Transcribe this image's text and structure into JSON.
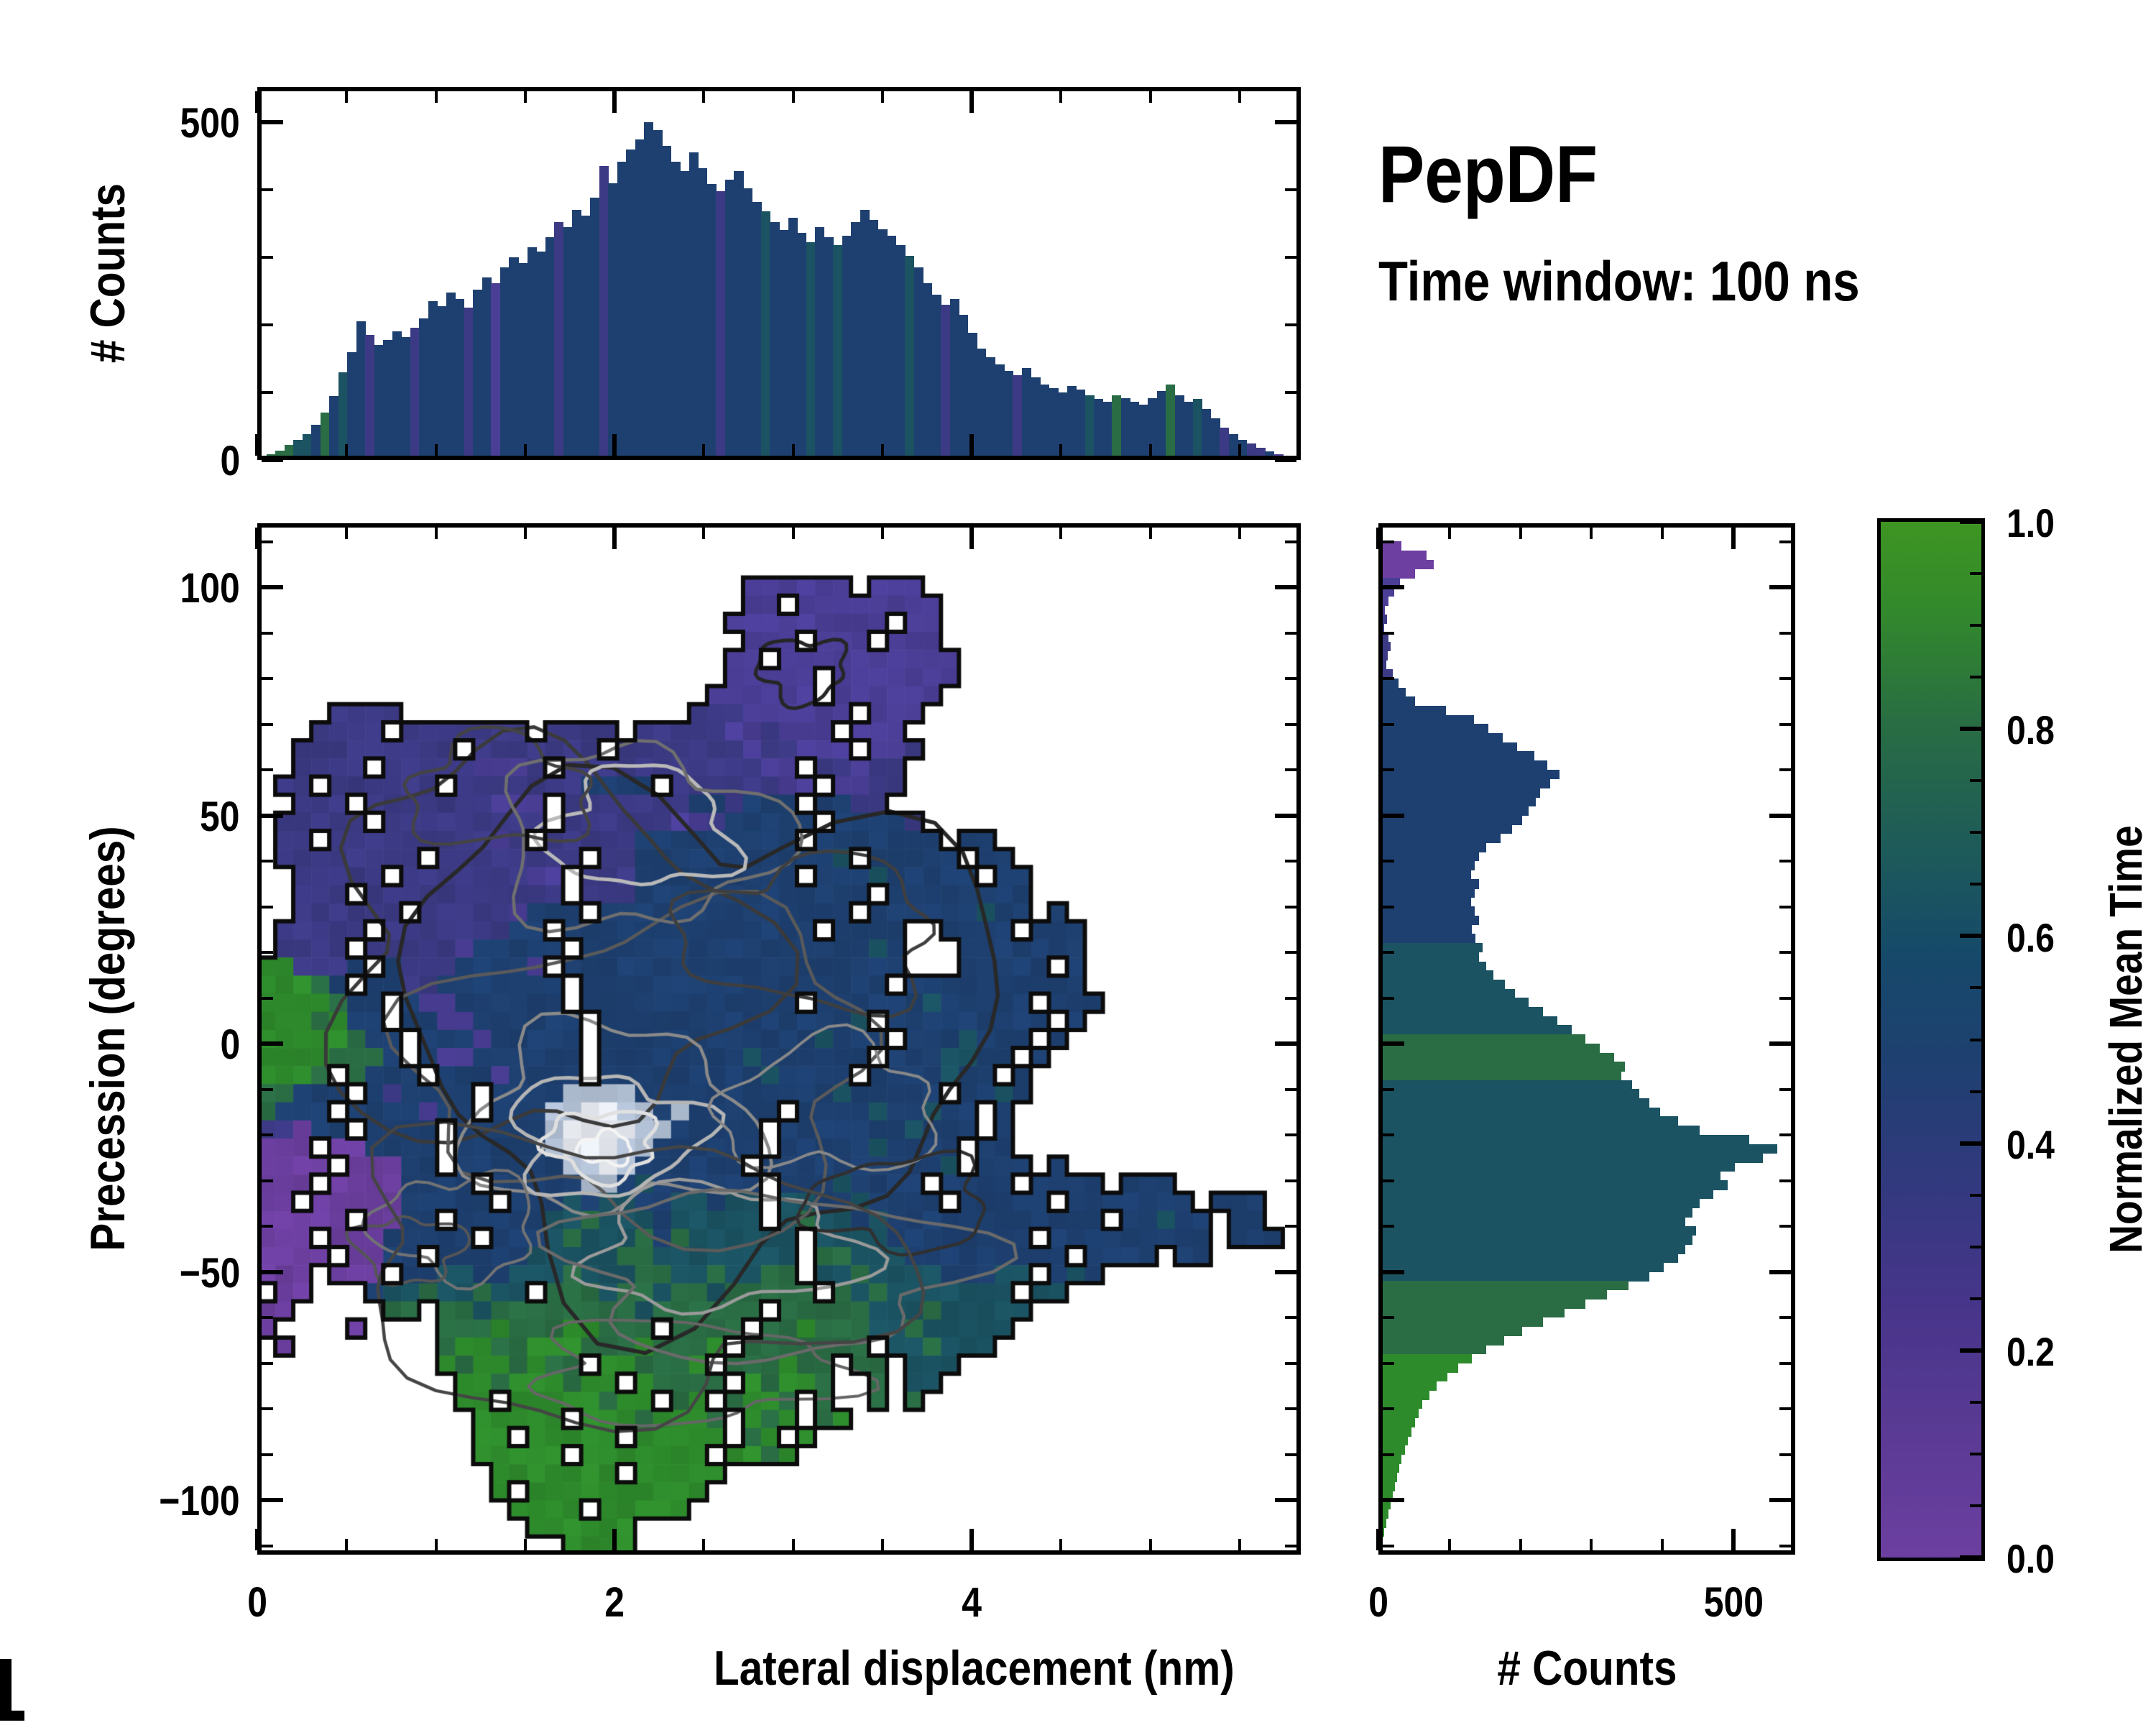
{
  "title": "PepDF",
  "subtitle": "Time window: 100 ns",
  "colorbar": {
    "label": "Normalized Mean Time",
    "tick_labels": [
      "0.0",
      "0.2",
      "0.4",
      "0.6",
      "0.8",
      "1.0"
    ],
    "tick_values": [
      0,
      0.2,
      0.4,
      0.6,
      0.8,
      1.0
    ],
    "minor_step": 0.05,
    "range": [
      0,
      1
    ]
  },
  "palette": {
    "p": "#6C3FA0",
    "v": "#4A3E96",
    "i": "#3C3A84",
    "b": "#1E4070",
    "t": "#1B5362",
    "g": "#2A6C44",
    "G": "#2E8B2C",
    "L": "#AFBDD1",
    "W": "#E9EDF3"
  },
  "colormap_stops": [
    [
      0,
      "#6C3FA0"
    ],
    [
      0.12,
      "#5A3A94"
    ],
    [
      0.25,
      "#46358A"
    ],
    [
      0.38,
      "#2F3A7C"
    ],
    [
      0.48,
      "#1E4070"
    ],
    [
      0.58,
      "#16496A"
    ],
    [
      0.68,
      "#1D5A5A"
    ],
    [
      0.8,
      "#286C44"
    ],
    [
      0.92,
      "#338A2B"
    ],
    [
      1,
      "#3E9522"
    ]
  ],
  "chart_data": [
    {
      "id": "top_histogram",
      "type": "bar",
      "orientation": "vertical",
      "ylabel": "# Counts",
      "ytick_labels": [
        "0",
        "500"
      ],
      "ytick_values": [
        0,
        500
      ],
      "y_minor_step": 100,
      "ylim": [
        0,
        552
      ],
      "x_bin_nm": 0.05,
      "xlim_nm": [
        0,
        5.8
      ],
      "values": [
        3,
        8,
        14,
        22,
        30,
        38,
        52,
        70,
        95,
        130,
        160,
        205,
        185,
        170,
        178,
        190,
        182,
        196,
        210,
        235,
        228,
        248,
        238,
        226,
        252,
        270,
        262,
        285,
        300,
        292,
        315,
        308,
        330,
        352,
        345,
        370,
        362,
        388,
        435,
        410,
        442,
        460,
        475,
        500,
        488,
        465,
        442,
        428,
        455,
        432,
        408,
        398,
        415,
        428,
        402,
        382,
        368,
        352,
        340,
        358,
        336,
        322,
        345,
        330,
        318,
        332,
        352,
        370,
        355,
        342,
        332,
        318,
        302,
        285,
        262,
        245,
        230,
        238,
        215,
        188,
        165,
        152,
        142,
        132,
        126,
        136,
        122,
        112,
        106,
        100,
        110,
        104,
        96,
        90,
        86,
        96,
        92,
        86,
        82,
        92,
        102,
        112,
        96,
        86,
        90,
        76,
        62,
        48,
        38,
        30,
        24,
        18,
        13,
        9,
        6,
        4
      ],
      "tints": "ggggttbgbtbbibbbbibbbbbibbvbbbbbbibbbbibbbbbbbbbbbbibbbbtbbbbtbbtbbbbbbbtbbbibbbbbbbibbbbbbbtbbgbbbbbgbbtbbibbiibvii"
    },
    {
      "id": "main_heatmap",
      "type": "heatmap",
      "xlabel": "Lateral displacement (nm)",
      "ylabel": "Precession (degrees)",
      "xtick_labels": [
        "0",
        "2",
        "4"
      ],
      "xtick_values": [
        0,
        2,
        4
      ],
      "x_minor_step": 0.5,
      "ytick_labels": [
        "100",
        "50",
        "0",
        "−50",
        "−100"
      ],
      "ytick_values": [
        100,
        50,
        0,
        -50,
        -100
      ],
      "y_minor_step": 10,
      "xlim_nm": [
        0,
        5.84
      ],
      "ylim_deg": [
        -112.5,
        114.3
      ],
      "grid_cols": 58,
      "grid_rows": 57,
      "cell_deg": 4,
      "cell_nm": 0.1,
      "cell_legend": {
        ".": "empty",
        "p": "purple t~0.05",
        "v": "violet t~0.18",
        "i": "indigo t~0.3",
        "b": "navy t~0.46",
        "t": "teal t~0.64",
        "g": "green-teal t~0.78",
        "G": "green t~0.93",
        "L": "light high-density",
        "W": "white high-density core"
      },
      "grid": [
        "",
        "",
        "",
        "...........................vvvvvv.vvv",
        "...........................vv.vvvvvvvv",
        "..........................vvvvvvvvv.vv",
        "...........................vvv.vvv.vvv",
        "..........................vv.vvvvvvvvvv",
        "..........................vvvvv.vvvvvvv",
        ".........................vvvvvv.vvvvvv",
        "....iiii................iiivvvvvv.vvv",
        "...iiii.iiiiiii.iiii.iiiiivvivvv.vvv",
        "..iiiiiiiii.iiiiiii.iiiiiiiviivvv.vvi",
        "..iiii.iiiiivvvi.iiiiiiiiiiivv.iivii",
        ".ii.iiiiii.iiiiiiibbbb.iiiiiivv.vvii",
        "..iii.iiiiiiivvv.iiiiiiibbibbb.bbii.",
        ".iiiii.iiiiiiiii.iiiiiivvibbbbb.bbbbi",
        ".ii.iiiiiiiiivi.iiiiibbbbbbbbb.bbbbbbb.bb",
        ".iiiiiiii.iiiiiiii.iibbbbbbbbbbbt.bbbbb.bb",
        "..iiiii.iiiiiiivv.iiibbbbbbbbb.bbbtbbbbb.bb",
        "..iii.iiiiiiiiiii.iiibbbbbbbbbbbbb.bbbbbbbb",
        "..iiiiii.iiiiivbbb.bbbbbbbbbbbbbb.bbbbbbtbb.b",
        ".iiiii.iiiiiiibb.bbbbbbbbbbbbbb.bbbb..bbbb.bbb",
        ".iiii.iiiiivbbbbb.bbbbbbbbbbbbbbbbtb...bbbbbbb",
        "GGiiib.biiibbbbv.bbbbbbbbbbbbbbbbbbb...bbbbb.b",
        "GGGgb.bbiibbbbbbb.bbbbbbbbbbbbbbbbb.bbbbbbbbbb",
        "GGGGgbb.bvvbbbbbb.bbbbbbbbbbbb.bbbbbbtbbbbb.bbb",
        "GGGgGbb.bbvvbbbbbb.bbbbbbbbbbbbbbt.bbbbbbbbb.b",
        "GGGGGgbb.bbbvbbbbb.bbbbbbbbbbbbtbbb.bbbtbbb.b",
        "GGGGgggb.bvvbbbbbb.bbbbbbbbtbbbbbb.bbbttbb.b",
        "GGGg.gbbb.bbbvbbbb.bbbbbbbbbtbbbb.bbbbtbb.b",
        "ggbbb.bibbbb.bbbbLLLLbbbbbbbbbbbtbbbbb.bbtb",
        "gbbb.bbbbvbb.bbbLLWWLLbLbbbbb.bbbbtbbtbb.b",
        "iipbb.bbbb.bbbbbLWWWWLLbbbbb.bbbbbbbtbbb.b",
        "ppp.ppbbbb.bbbbbLWWWLLbbbbbb.bbbbbtbbbb.bb",
        "pppp.pppbb.bbbbbbLLWLbbbbbb.bbbbbbbbbbt.bbb.b",
        "ppp.ppppbbbb.bbbbbLLbtbbbbbb.bbbtbbbb.bbbb.bbbb.bbb",
        "pp.pppppbbbbb.bbbtbttbbttbtt.ttbbtbbbb.bbbbb.bbbbbbb.bbb",
        "ppppp.ppbb.bbbbbttgtttbttttt.tgttbtbbbbbbbbbbbb.bbtbb.bb",
        "ppp.pppbbbbb.bbbtgtttgbgtttttt.ttttbbbbbbbb.bbbbbbbbb.bbb",
        "pppp.ppbb.bbbbbtttttggtttttttt.ggtttbbbbbbbbb.bbbb.bb",
        "ppp.ppp.bbttbbtttgtttggttgttgg.ttgttttbbbtt.btb",
        ".pp...bttgttgtt.gggtggtggtggggg.gtgttttttt.tt",
        "pp.....gg.ggtggggggggtgggggg.gggggtttgttttt.",
        "p....p....gggGgggGGggg.gggg.ggGgggttgttttt.",
        ".p........gGGggGGGgggGgggG.ggggggg.ttgttt.",
        "..........GgGGgGgg.GGgggG.gggGgg.gg.ttt.",
        "...........GGgGGGgGG.Ggggg.GgGGg..g.tt.",
        "...........GG.GGGGGgGG.gG.gGGg.g..g.g.",
        "............GGGGG.GGGgGGGg.GgG.gG.",
        "............GG.GGGGG.GGGGG.gG.G",
        "............GGGGG.GGGGGGG.GGgG",
        ".............GGGGGGG.GGGGG.",
        ".............G.GGGGGGGGGG.",
        "..............GGGG.GGGGG",
        "...............GGGGGG.",
        ".................GGGG"
      ],
      "contour_rings": [
        {
          "x": 1.55,
          "y": 20,
          "rx": 1.15,
          "ry": 42,
          "c": "#3a3a3a",
          "w": 5
        },
        {
          "x": 2.45,
          "y": 3,
          "rx": 1.6,
          "ry": 54,
          "c": "#282828",
          "w": 5.5
        },
        {
          "x": 2.2,
          "y": -6,
          "rx": 1.25,
          "ry": 34,
          "c": "#5a5a5a",
          "w": 4.5
        },
        {
          "x": 2.15,
          "y": 47,
          "rx": 0.5,
          "ry": 13,
          "c": "#b9b9b9",
          "w": 5
        },
        {
          "x": 2.12,
          "y": 45,
          "rx": 0.78,
          "ry": 19,
          "c": "#6f6f6f",
          "w": 4.5
        },
        {
          "x": 3.05,
          "y": 82,
          "rx": 0.24,
          "ry": 7,
          "c": "#262626",
          "w": 5
        },
        {
          "x": 3.1,
          "y": 24,
          "rx": 0.7,
          "ry": 16,
          "c": "#3f3f3f",
          "w": 4.5
        },
        {
          "x": 1.98,
          "y": -17,
          "rx": 0.8,
          "ry": 20,
          "c": "#8a8a8a",
          "w": 4.5
        },
        {
          "x": 1.95,
          "y": -20,
          "rx": 0.52,
          "ry": 13,
          "c": "#b5b5b5",
          "w": 5
        },
        {
          "x": 1.93,
          "y": -22,
          "rx": 0.3,
          "ry": 7.5,
          "c": "#e0e0e0",
          "w": 5
        },
        {
          "x": 1.95,
          "y": -23,
          "rx": 0.15,
          "ry": 3.4,
          "c": "#f4f4f4",
          "w": 4.5
        },
        {
          "x": 2.6,
          "y": -45,
          "rx": 0.75,
          "ry": 13,
          "c": "#9a9a9a",
          "w": 4.5
        },
        {
          "x": 2.85,
          "y": -50,
          "rx": 1.1,
          "ry": 18,
          "c": "#6a6a6a",
          "w": 4.5
        },
        {
          "x": 1.12,
          "y": -40,
          "rx": 0.45,
          "ry": 11,
          "c": "#737373",
          "w": 4
        },
        {
          "x": 3.2,
          "y": -14,
          "rx": 0.6,
          "ry": 14,
          "c": "#888888",
          "w": 4
        },
        {
          "x": 2.4,
          "y": -72,
          "rx": 0.85,
          "ry": 11,
          "c": "#666666",
          "w": 4
        },
        {
          "x": 0.85,
          "y": -45,
          "rx": 0.3,
          "ry": 7,
          "c": "#555555",
          "w": 4
        },
        {
          "x": 3.6,
          "y": -35,
          "rx": 0.5,
          "ry": 10,
          "c": "#303030",
          "w": 4.5
        },
        {
          "x": 1.35,
          "y": 55,
          "rx": 0.5,
          "ry": 12,
          "c": "#444444",
          "w": 4.5
        },
        {
          "x": 2.0,
          "y": -50,
          "rx": 1.5,
          "ry": 30,
          "c": "#454545",
          "w": 4.5
        }
      ]
    },
    {
      "id": "right_histogram",
      "type": "bar",
      "orientation": "horizontal",
      "xlabel": "# Counts",
      "xtick_labels": [
        "0",
        "500"
      ],
      "xtick_values": [
        0,
        500
      ],
      "x_minor_step": 100,
      "xlim": [
        0,
        587
      ],
      "deg_start": 113,
      "bin_deg": 2,
      "values": [
        2,
        6,
        32,
        68,
        78,
        52,
        30,
        22,
        14,
        9,
        12,
        8,
        14,
        17,
        13,
        11,
        20,
        28,
        38,
        52,
        95,
        135,
        155,
        175,
        195,
        220,
        238,
        255,
        242,
        228,
        222,
        212,
        202,
        188,
        172,
        152,
        142,
        136,
        131,
        142,
        136,
        131,
        136,
        142,
        132,
        137,
        147,
        142,
        152,
        162,
        178,
        192,
        212,
        232,
        252,
        272,
        292,
        312,
        332,
        347,
        342,
        357,
        367,
        382,
        397,
        422,
        452,
        522,
        562,
        542,
        502,
        482,
        492,
        472,
        452,
        442,
        432,
        447,
        442,
        432,
        422,
        402,
        382,
        352,
        322,
        292,
        262,
        232,
        202,
        177,
        152,
        132,
        112,
        97,
        82,
        72,
        62,
        57,
        52,
        47,
        42,
        37,
        32,
        29,
        26,
        23,
        20,
        17,
        14,
        11,
        8,
        5,
        3
      ],
      "tints": "ppppppvvvviiiiiiibbbbbbbbbbbbbbbbbbbbbbbbbbbbbttttttttttgggggttttttttttttttttttttttggggggggGGGGGGGGGGGGGGGGGGGGGG"
    }
  ]
}
